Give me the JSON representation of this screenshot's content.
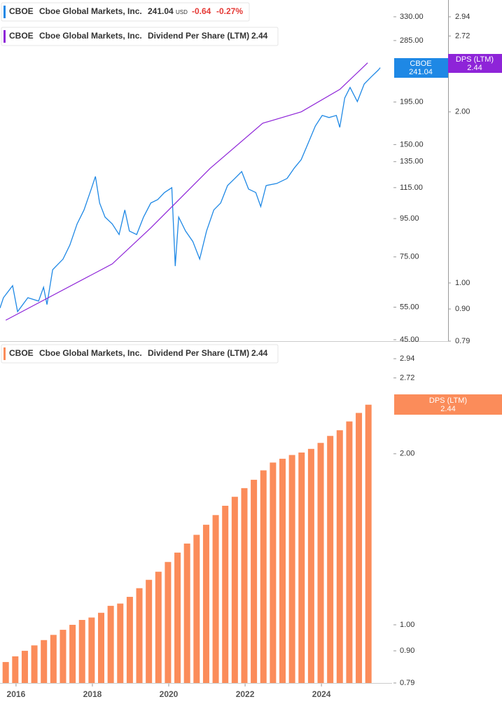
{
  "chart_data": [
    {
      "type": "line",
      "legend": {
        "ticker": "CBOE",
        "company": "Cboe Global Markets, Inc.",
        "price": "241.04",
        "currency": "USD",
        "change": -0.64,
        "change_pct": "-0.27%"
      },
      "legend2": {
        "ticker": "CBOE",
        "company": "Cboe Global Markets, Inc.",
        "metric": "Dividend Per Share (LTM)",
        "value": 2.44
      },
      "badge": {
        "ticker": "CBOE",
        "price": "241.04",
        "metric": "DPS (LTM)",
        "value": 2.44
      },
      "log_scale": true,
      "xlim": [
        2015.58,
        2025.85
      ],
      "ylim": [
        44.6,
        366
      ],
      "yticks": [
        {
          "value": 330,
          "label": "330.00"
        },
        {
          "value": 285,
          "label": "285.00"
        },
        {
          "value": 195,
          "label": "195.00"
        },
        {
          "value": 150,
          "label": "150.00"
        },
        {
          "value": 135,
          "label": "135.00"
        },
        {
          "value": 115,
          "label": "115.00"
        },
        {
          "value": 95,
          "label": "95.00"
        },
        {
          "value": 75,
          "label": "75.00"
        },
        {
          "value": 55,
          "label": "55.00"
        },
        {
          "value": 45,
          "label": "45.00"
        }
      ],
      "y2lim": [
        0.79,
        3.147
      ],
      "y2ticks": [
        2.94,
        2.72,
        {
          "value": 2,
          "label": "2.00"
        },
        {
          "value": 1,
          "label": "1.00"
        },
        {
          "value": 0.9,
          "label": "0.90"
        },
        0.79
      ],
      "series": [
        {
          "name": "CBOE",
          "color": "#1e88e5",
          "axis": "y",
          "x": [
            2015.58,
            2015.67,
            2015.91,
            2016.04,
            2016.31,
            2016.59,
            2016.72,
            2016.81,
            2016.96,
            2017.23,
            2017.41,
            2017.6,
            2017.78,
            2017.97,
            2018.08,
            2018.19,
            2018.33,
            2018.52,
            2018.7,
            2018.85,
            2018.97,
            2019.16,
            2019.34,
            2019.53,
            2019.71,
            2019.89,
            2020.08,
            2020.17,
            2020.26,
            2020.44,
            2020.63,
            2020.81,
            2020.99,
            2021.18,
            2021.36,
            2021.54,
            2021.73,
            2021.91,
            2022.09,
            2022.28,
            2022.41,
            2022.55,
            2022.83,
            2023.1,
            2023.29,
            2023.47,
            2023.65,
            2023.84,
            2024.02,
            2024.2,
            2024.39,
            2024.48,
            2024.61,
            2024.75,
            2024.94,
            2025.12,
            2025.3,
            2025.49,
            2025.54
          ],
          "values": [
            54.7,
            58.3,
            62.8,
            53.5,
            58.3,
            57.1,
            62.2,
            55.9,
            69.3,
            74.0,
            80.7,
            91.9,
            100.2,
            114,
            123.2,
            104.6,
            95.9,
            91.9,
            86.1,
            100.2,
            88.0,
            86.1,
            95.9,
            104.6,
            106.8,
            111.6,
            115,
            70.9,
            95.9,
            88.0,
            82.5,
            74.0,
            88.0,
            100.2,
            104.6,
            116.5,
            121.7,
            127,
            114,
            111.6,
            102.3,
            116.5,
            118,
            121.7,
            129.8,
            136.7,
            151,
            168.2,
            179.5,
            177.2,
            179.5,
            166.8,
            200,
            213.4,
            195.6,
            218,
            227.6,
            237.7,
            241.04
          ]
        },
        {
          "name": "DPS (LTM)",
          "color": "#8e24d8",
          "axis": "y2",
          "x": [
            2015.73,
            2018.52,
            2019.53,
            2021.08,
            2022.46,
            2023.47,
            2024.48,
            2025.21
          ],
          "values": [
            0.86,
            1.08,
            1.25,
            1.59,
            1.91,
            2.0,
            2.19,
            2.44
          ]
        }
      ]
    },
    {
      "type": "bar",
      "legend": {
        "ticker": "CBOE",
        "company": "Cboe Global Markets, Inc.",
        "metric": "Dividend Per Share (LTM)",
        "value": 2.44
      },
      "badge": {
        "metric": "DPS (LTM)",
        "value": 2.44
      },
      "log_scale": true,
      "color": "#fb8c5a",
      "xlim": [
        2015.58,
        2025.85
      ],
      "xticks": [
        2016,
        2018,
        2020,
        2022,
        2024
      ],
      "ylim": [
        0.79,
        3.13
      ],
      "yticks": [
        2.94,
        2.72,
        {
          "value": 2,
          "label": "2.00"
        },
        {
          "value": 1,
          "label": "1.00"
        },
        {
          "value": 0.9,
          "label": "0.90"
        },
        0.79
      ],
      "x": [
        2015.73,
        2015.98,
        2016.23,
        2016.48,
        2016.73,
        2016.98,
        2017.23,
        2017.48,
        2017.73,
        2017.98,
        2018.23,
        2018.48,
        2018.73,
        2018.98,
        2019.23,
        2019.48,
        2019.73,
        2019.98,
        2020.23,
        2020.48,
        2020.73,
        2020.98,
        2021.23,
        2021.48,
        2021.73,
        2021.98,
        2022.23,
        2022.48,
        2022.73,
        2022.98,
        2023.23,
        2023.48,
        2023.73,
        2023.98,
        2024.23,
        2024.48,
        2024.73,
        2024.98,
        2025.23
      ],
      "values": [
        0.86,
        0.88,
        0.9,
        0.92,
        0.94,
        0.96,
        0.98,
        1.0,
        1.02,
        1.03,
        1.05,
        1.08,
        1.09,
        1.12,
        1.16,
        1.2,
        1.24,
        1.29,
        1.34,
        1.39,
        1.44,
        1.5,
        1.56,
        1.62,
        1.68,
        1.74,
        1.8,
        1.87,
        1.93,
        1.96,
        1.99,
        2.01,
        2.04,
        2.09,
        2.15,
        2.2,
        2.28,
        2.36,
        2.44
      ]
    }
  ]
}
